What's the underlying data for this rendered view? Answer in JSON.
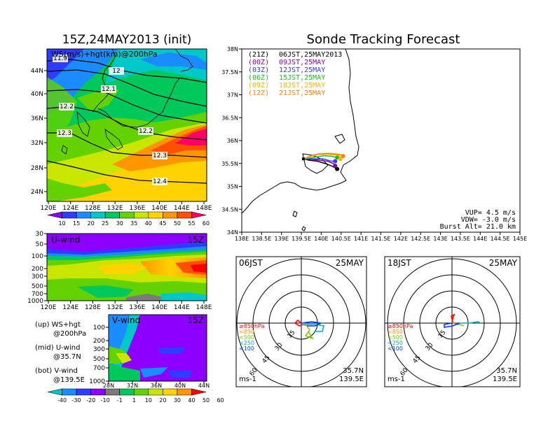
{
  "colors": {
    "ws_scale": [
      "#8c00ff",
      "#2d3cff",
      "#1a8cff",
      "#00c8c8",
      "#00c85a",
      "#64d200",
      "#c8e600",
      "#ffd200",
      "#ff9600",
      "#ff5000",
      "#ff0064"
    ],
    "uv_scale": [
      "#00c8c8",
      "#1a8cff",
      "#2d3cff",
      "#8c00ff",
      "#7b7b7b",
      "#00c85a",
      "#64d200",
      "#c8e600",
      "#ffd200",
      "#ff9600",
      "#ff0000"
    ],
    "track_times": [
      "#000000",
      "#8c00aa",
      "#2d3cff",
      "#16c016",
      "#ffb000",
      "#ff7d00"
    ],
    "hodo_levels": [
      "#ff0000",
      "#ff9000",
      "#80c800",
      "#00b4b4",
      "#0040ff"
    ]
  },
  "left": {
    "map_title": "15Z,24MAY2013 (init)",
    "map_label": "WS(m/s)+hgt(km)@200hPa",
    "map_xticks": [
      "120E",
      "124E",
      "128E",
      "132E",
      "136E",
      "140E",
      "144E",
      "148E"
    ],
    "map_yticks": [
      "44N",
      "40N",
      "36N",
      "32N",
      "28N",
      "24N"
    ],
    "contour_labels": [
      "11.9",
      "12",
      "12.1",
      "12.2",
      "12.2",
      "12.3",
      "12.3",
      "12.4"
    ],
    "ws_colorbar": [
      "10",
      "15",
      "20",
      "25",
      "30",
      "35",
      "40",
      "45",
      "50",
      "55",
      "60"
    ],
    "u_title": "U-wind",
    "u_time": "15Z",
    "u_yticks": [
      "30",
      "50",
      "100",
      "200",
      "300",
      "500",
      "700",
      "1000"
    ],
    "u_xticks": [
      "120E",
      "124E",
      "128E",
      "132E",
      "136E",
      "140E",
      "144E",
      "148E"
    ],
    "v_title": "V-wind",
    "v_time": "15Z",
    "v_yticks": [
      "100",
      "200",
      "300",
      "500",
      "700",
      "1000"
    ],
    "v_xticks": [
      "28N",
      "32N",
      "36N",
      "40N",
      "44N"
    ],
    "uv_colorbar": [
      "-40",
      "-30",
      "-20",
      "-10",
      "-1",
      "1",
      "10",
      "20",
      "30",
      "40",
      "50",
      "60"
    ],
    "legend": {
      "up1": "(up) WS+hgt",
      "up2": "@200hPa",
      "mid1": "(mid) U-wind",
      "mid2": "@35.7N",
      "bot1": "(bot) V-wind",
      "bot2": "@139.5E"
    }
  },
  "right": {
    "title": "Sonde Tracking Forecast",
    "xticks": [
      "138E",
      "138.5E",
      "139E",
      "139.5E",
      "140E",
      "140.5E",
      "141E",
      "141.5E",
      "142E",
      "142.5E",
      "143E",
      "143.5E",
      "144E",
      "144.5E",
      "145E"
    ],
    "yticks": [
      "38N",
      "37.5N",
      "37N",
      "36.5N",
      "36N",
      "35.5N",
      "35N",
      "34.5N",
      "34N"
    ],
    "times": [
      {
        "utc": "(21Z)",
        "jst": "06JST,25MAY2013"
      },
      {
        "utc": "(00Z)",
        "jst": "09JST,25MAY"
      },
      {
        "utc": "(03Z)",
        "jst": "12JST,25MAY"
      },
      {
        "utc": "(06Z)",
        "jst": "15JST,25MAY"
      },
      {
        "utc": "(09Z)",
        "jst": "18JST,25MAY"
      },
      {
        "utc": "(12Z)",
        "jst": "21JST,25MAY"
      }
    ],
    "params": [
      "VUP= 4.5 m/s",
      "VDW= -3.0 m/s",
      "Burst Alt= 21.0 km"
    ],
    "hodo1": {
      "time": "06JST",
      "date": "25MAY",
      "lat": "35.7N",
      "lon": "139.5E",
      "unit": "ms-1",
      "rings": [
        "15",
        "30",
        "45",
        "60"
      ],
      "levels": [
        "≥850hPa",
        "<850",
        "<500",
        "<250",
        "<100"
      ]
    },
    "hodo2": {
      "time": "18JST",
      "date": "25MAY",
      "lat": "35.7N",
      "lon": "139.5E",
      "unit": "ms-1",
      "rings": [
        "15",
        "30",
        "45",
        "60"
      ],
      "levels": [
        "≥850hPa",
        "<850",
        "<500",
        "<250",
        "<100"
      ]
    }
  },
  "chart_data": [
    {
      "type": "heatmap",
      "title": "15Z,24MAY2013 (init)",
      "subtitle": "WS(m/s)+hgt(km)@200hPa",
      "x_ticks": [
        "120E",
        "124E",
        "128E",
        "132E",
        "136E",
        "140E",
        "144E",
        "148E"
      ],
      "y_ticks": [
        "24N",
        "28N",
        "32N",
        "36N",
        "40N",
        "44N"
      ],
      "color_levels": [
        10,
        15,
        20,
        25,
        30,
        35,
        40,
        45,
        50,
        55,
        60
      ],
      "contour_values_km": [
        11.9,
        12,
        12.1,
        12.2,
        12.2,
        12.3,
        12.3,
        12.4
      ]
    },
    {
      "type": "heatmap",
      "title": "U-wind",
      "x_ticks": [
        "120E",
        "124E",
        "128E",
        "132E",
        "136E",
        "140E",
        "144E",
        "148E"
      ],
      "y_ticks_hPa": [
        30,
        50,
        100,
        200,
        300,
        500,
        700,
        1000
      ],
      "color_levels": [
        -40,
        -30,
        -20,
        -10,
        -1,
        1,
        10,
        20,
        30,
        40,
        50,
        60
      ]
    },
    {
      "type": "heatmap",
      "title": "V-wind",
      "x_ticks": [
        "28N",
        "32N",
        "36N",
        "40N",
        "44N"
      ],
      "y_ticks_hPa": [
        100,
        200,
        300,
        500,
        700,
        1000
      ],
      "color_levels": [
        -40,
        -30,
        -20,
        -10,
        -1,
        1,
        10,
        20,
        30,
        40,
        50,
        60
      ]
    },
    {
      "type": "line",
      "title": "Sonde Tracking Forecast",
      "xlim": [
        138,
        145
      ],
      "ylim": [
        34,
        38
      ],
      "launch": {
        "lon": 139.55,
        "lat": 35.6
      },
      "series": [
        {
          "name": "(21Z) 06JST,25MAY2013",
          "x": [
            139.55,
            139.7,
            139.9,
            140.1,
            140.25,
            140.4
          ],
          "y": [
            35.6,
            35.57,
            35.55,
            35.5,
            35.45,
            35.38
          ]
        },
        {
          "name": "(00Z) 09JST,25MAY",
          "x": [
            139.55,
            139.75,
            139.95,
            140.15,
            140.3,
            140.35
          ],
          "y": [
            35.6,
            35.59,
            35.57,
            35.55,
            35.5,
            35.45
          ]
        },
        {
          "name": "(03Z) 12JST,25MAY",
          "x": [
            139.55,
            139.8,
            140.05,
            140.25,
            140.35
          ],
          "y": [
            35.6,
            35.6,
            35.6,
            35.55,
            35.55
          ]
        },
        {
          "name": "(06Z) 15JST,25MAY",
          "x": [
            139.55,
            139.8,
            140.05,
            140.25,
            140.4
          ],
          "y": [
            35.6,
            35.63,
            35.67,
            35.66,
            35.63
          ]
        },
        {
          "name": "(09Z) 18JST,25MAY",
          "x": [
            139.55,
            139.75,
            139.95,
            140.2,
            140.45,
            140.48
          ],
          "y": [
            35.6,
            35.66,
            35.7,
            35.7,
            35.68,
            35.6
          ]
        },
        {
          "name": "(12Z) 21JST,25MAY",
          "x": [
            139.55,
            139.75,
            139.95,
            140.2,
            140.45,
            140.55
          ],
          "y": [
            35.6,
            35.67,
            35.71,
            35.72,
            35.7,
            35.66
          ]
        }
      ]
    },
    {
      "type": "scatter",
      "title": "06JST 25MAY",
      "rings_ms": [
        15,
        30,
        45,
        60
      ],
      "levels": [
        "≥850hPa",
        "<850",
        "<500",
        "<250",
        "<100"
      ]
    },
    {
      "type": "scatter",
      "title": "18JST 25MAY",
      "rings_ms": [
        15,
        30,
        45,
        60
      ],
      "levels": [
        "≥850hPa",
        "<850",
        "<500",
        "<250",
        "<100"
      ]
    }
  ]
}
